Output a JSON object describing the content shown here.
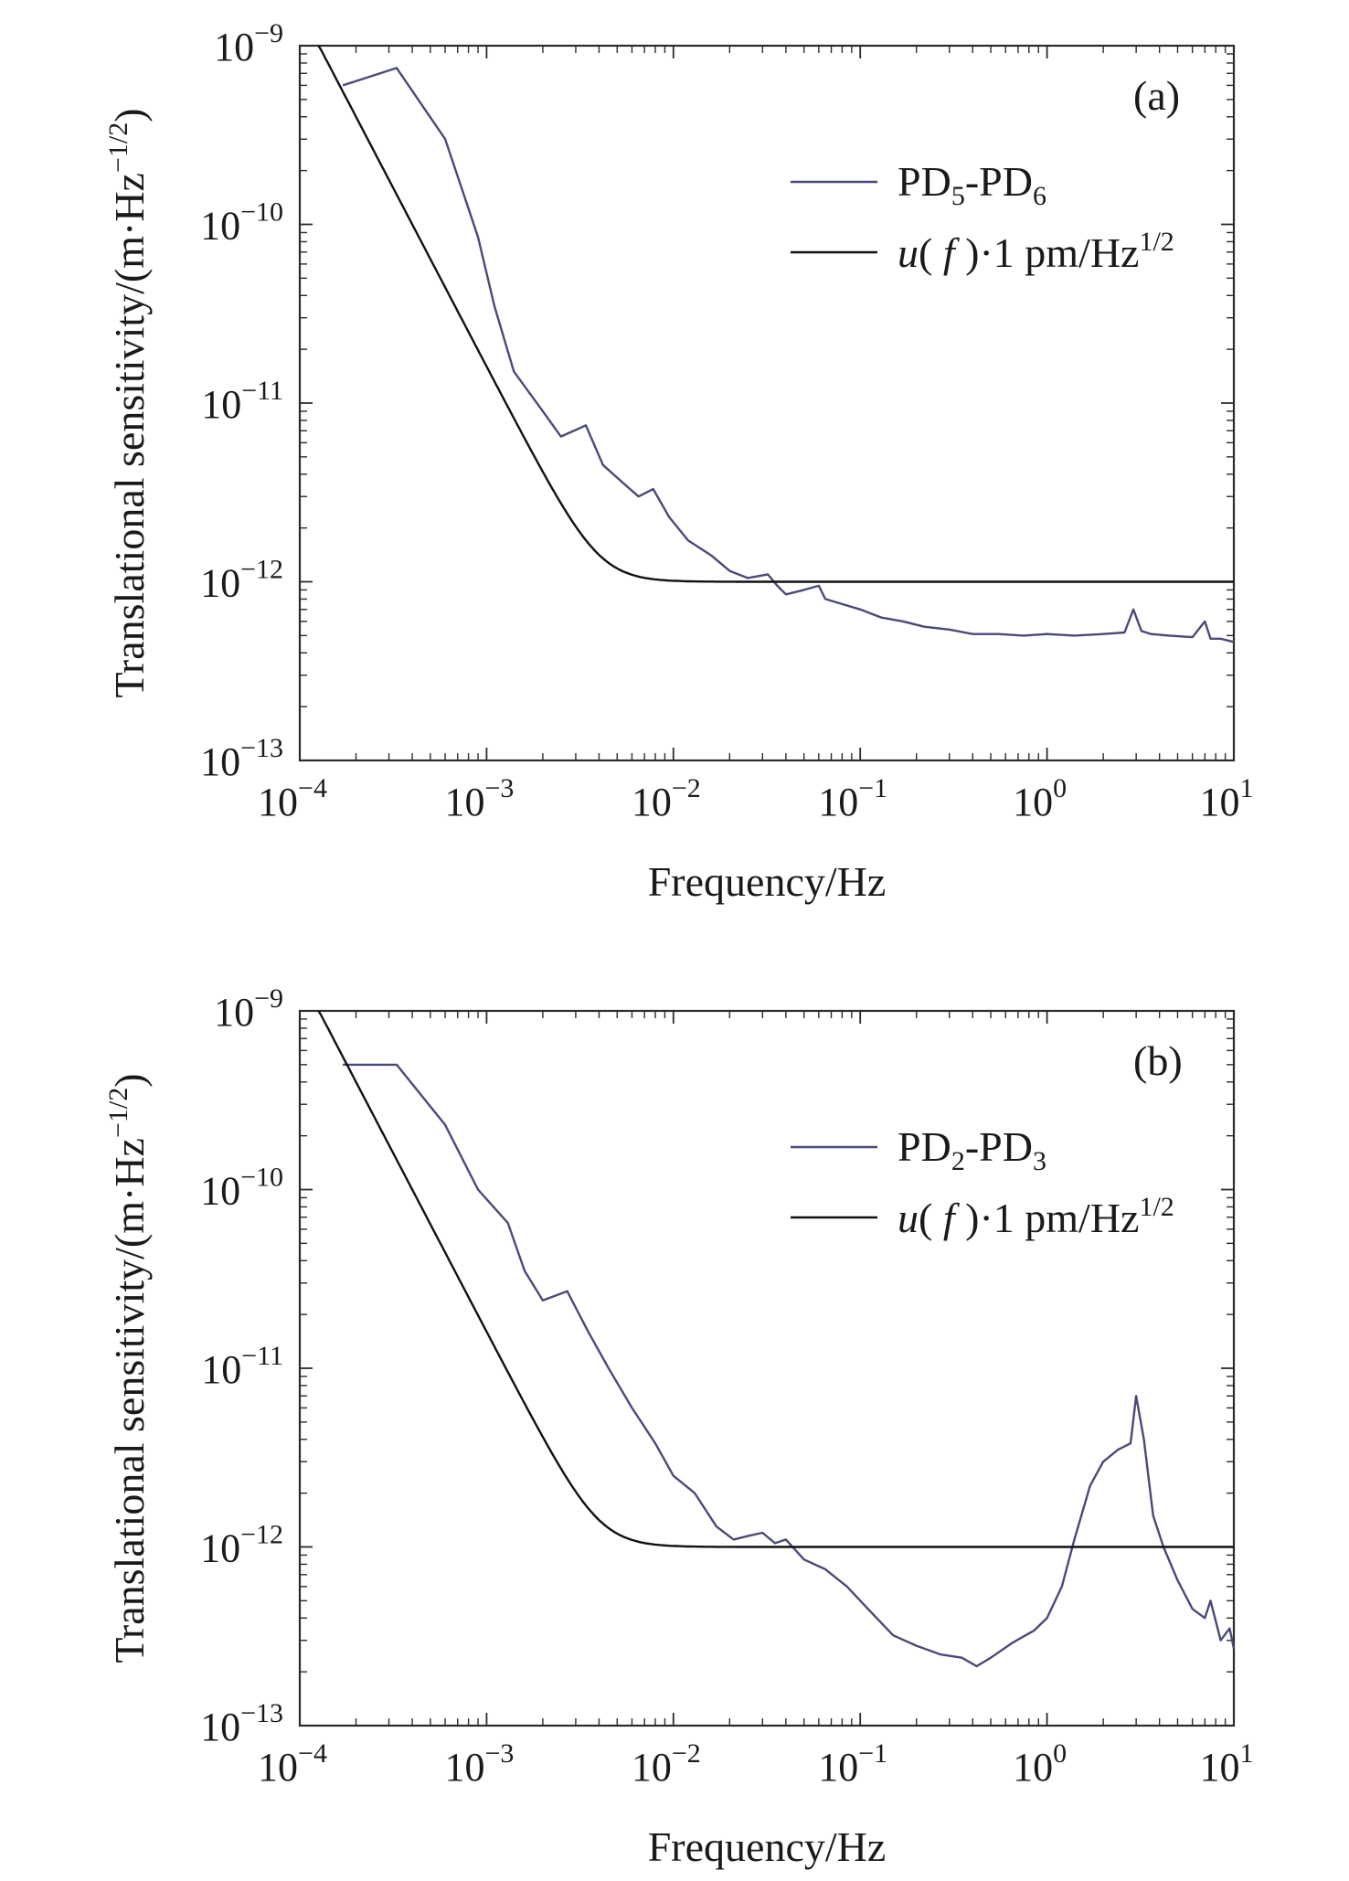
{
  "chart_data": [
    {
      "type": "line",
      "panel_label": "(a)",
      "xlabel": "Frequency/Hz",
      "ylabel": "Translational sensitivity/(m·Hz",
      "ylabel_sup": "−1/2",
      "ylabel_close": ")",
      "x_scale": "log",
      "y_scale": "log",
      "xlim": [
        0.0001,
        10
      ],
      "ylim": [
        1e-13,
        1e-09
      ],
      "x_ticks": [
        {
          "base": "10",
          "exp": "−4",
          "value": 0.0001
        },
        {
          "base": "10",
          "exp": "−3",
          "value": 0.001
        },
        {
          "base": "10",
          "exp": "−2",
          "value": 0.01
        },
        {
          "base": "10",
          "exp": "−1",
          "value": 0.1
        },
        {
          "base": "10",
          "exp": "0",
          "value": 1
        },
        {
          "base": "10",
          "exp": "1",
          "value": 10
        }
      ],
      "y_ticks": [
        {
          "base": "10",
          "exp": "−9",
          "value": 1e-09
        },
        {
          "base": "10",
          "exp": "−10",
          "value": 1e-10
        },
        {
          "base": "10",
          "exp": "−11",
          "value": 1e-11
        },
        {
          "base": "10",
          "exp": "−12",
          "value": 1e-12
        },
        {
          "base": "10",
          "exp": "−13",
          "value": 1e-13
        }
      ],
      "legend": {
        "placement": "top-right"
      },
      "series": [
        {
          "name": "PD5-PD6",
          "name_parts": {
            "a": "PD",
            "a_sub": "5",
            "mid": "-PD",
            "b_sub": "6"
          },
          "color": "#4a4a78",
          "x": [
            0.00017,
            0.00033,
            0.0006,
            0.0009,
            0.0011,
            0.0014,
            0.002,
            0.0025,
            0.0034,
            0.0042,
            0.0055,
            0.0065,
            0.0078,
            0.0095,
            0.012,
            0.016,
            0.02,
            0.025,
            0.032,
            0.036,
            0.04,
            0.05,
            0.06,
            0.065,
            0.08,
            0.1,
            0.13,
            0.17,
            0.22,
            0.3,
            0.4,
            0.55,
            0.75,
            1.0,
            1.4,
            2.0,
            2.6,
            2.9,
            3.2,
            3.6,
            4.5,
            6.0,
            7.0,
            7.5,
            8.5,
            10
          ],
          "y": [
            6e-10,
            7.5e-10,
            3e-10,
            8.5e-11,
            3.5e-11,
            1.5e-11,
            9e-12,
            6.5e-12,
            7.5e-12,
            4.5e-12,
            3.5e-12,
            3e-12,
            3.3e-12,
            2.3e-12,
            1.7e-12,
            1.4e-12,
            1.15e-12,
            1.05e-12,
            1.1e-12,
            9.5e-13,
            8.5e-13,
            9e-13,
            9.5e-13,
            8e-13,
            7.5e-13,
            7e-13,
            6.3e-13,
            6e-13,
            5.6e-13,
            5.4e-13,
            5.1e-13,
            5.1e-13,
            5e-13,
            5.1e-13,
            5e-13,
            5.1e-13,
            5.2e-13,
            7e-13,
            5.3e-13,
            5.1e-13,
            5e-13,
            4.9e-13,
            6e-13,
            4.8e-13,
            4.8e-13,
            4.6e-13
          ]
        },
        {
          "name": "u(f)·1 pm/Hz1/2",
          "name_parts": {
            "fn": "u",
            "arg": "f",
            "rest": "·1 pm/Hz",
            "sup": "1/2"
          },
          "color": "#111111",
          "model": "1e-12 * sqrt(1 + (4e-3 / f)^4)"
        }
      ]
    },
    {
      "type": "line",
      "panel_label": "(b)",
      "xlabel": "Frequency/Hz",
      "ylabel": "Translational sensitivity/(m·Hz",
      "ylabel_sup": "−1/2",
      "ylabel_close": ")",
      "x_scale": "log",
      "y_scale": "log",
      "xlim": [
        0.0001,
        10
      ],
      "ylim": [
        1e-13,
        1e-09
      ],
      "x_ticks": [
        {
          "base": "10",
          "exp": "−4",
          "value": 0.0001
        },
        {
          "base": "10",
          "exp": "−3",
          "value": 0.001
        },
        {
          "base": "10",
          "exp": "−2",
          "value": 0.01
        },
        {
          "base": "10",
          "exp": "−1",
          "value": 0.1
        },
        {
          "base": "10",
          "exp": "0",
          "value": 1
        },
        {
          "base": "10",
          "exp": "1",
          "value": 10
        }
      ],
      "y_ticks": [
        {
          "base": "10",
          "exp": "−9",
          "value": 1e-09
        },
        {
          "base": "10",
          "exp": "−10",
          "value": 1e-10
        },
        {
          "base": "10",
          "exp": "−11",
          "value": 1e-11
        },
        {
          "base": "10",
          "exp": "−12",
          "value": 1e-12
        },
        {
          "base": "10",
          "exp": "−13",
          "value": 1e-13
        }
      ],
      "legend": {
        "placement": "top-right"
      },
      "series": [
        {
          "name": "PD2-PD3",
          "name_parts": {
            "a": "PD",
            "a_sub": "2",
            "mid": "-PD",
            "b_sub": "3"
          },
          "color": "#4a4a78",
          "x": [
            0.00017,
            0.00033,
            0.0006,
            0.0009,
            0.0013,
            0.0016,
            0.002,
            0.0027,
            0.0035,
            0.0045,
            0.006,
            0.008,
            0.01,
            0.013,
            0.017,
            0.021,
            0.025,
            0.03,
            0.035,
            0.04,
            0.05,
            0.065,
            0.085,
            0.11,
            0.15,
            0.2,
            0.27,
            0.35,
            0.42,
            0.5,
            0.65,
            0.85,
            1.0,
            1.2,
            1.4,
            1.7,
            2.0,
            2.4,
            2.8,
            3.0,
            3.3,
            3.7,
            4.2,
            5.0,
            6.0,
            7.0,
            7.5,
            8.5,
            9.5,
            10
          ],
          "y": [
            5e-10,
            5e-10,
            2.3e-10,
            1e-10,
            6.5e-11,
            3.5e-11,
            2.4e-11,
            2.7e-11,
            1.6e-11,
            1e-11,
            6e-12,
            3.8e-12,
            2.5e-12,
            2e-12,
            1.3e-12,
            1.1e-12,
            1.15e-12,
            1.2e-12,
            1.05e-12,
            1.1e-12,
            8.5e-13,
            7.5e-13,
            6e-13,
            4.5e-13,
            3.2e-13,
            2.8e-13,
            2.5e-13,
            2.4e-13,
            2.15e-13,
            2.4e-13,
            2.9e-13,
            3.4e-13,
            4e-13,
            6e-13,
            1.1e-12,
            2.2e-12,
            3e-12,
            3.5e-12,
            3.8e-12,
            7e-12,
            4e-12,
            1.5e-12,
            1e-12,
            6.5e-13,
            4.5e-13,
            4e-13,
            5e-13,
            3e-13,
            3.5e-13,
            2.7e-13
          ]
        },
        {
          "name": "u(f)·1 pm/Hz1/2",
          "name_parts": {
            "fn": "u",
            "arg": "f",
            "rest": "·1 pm/Hz",
            "sup": "1/2"
          },
          "color": "#111111",
          "model": "1e-12 * sqrt(1 + (4e-3 / f)^4)"
        }
      ]
    }
  ]
}
